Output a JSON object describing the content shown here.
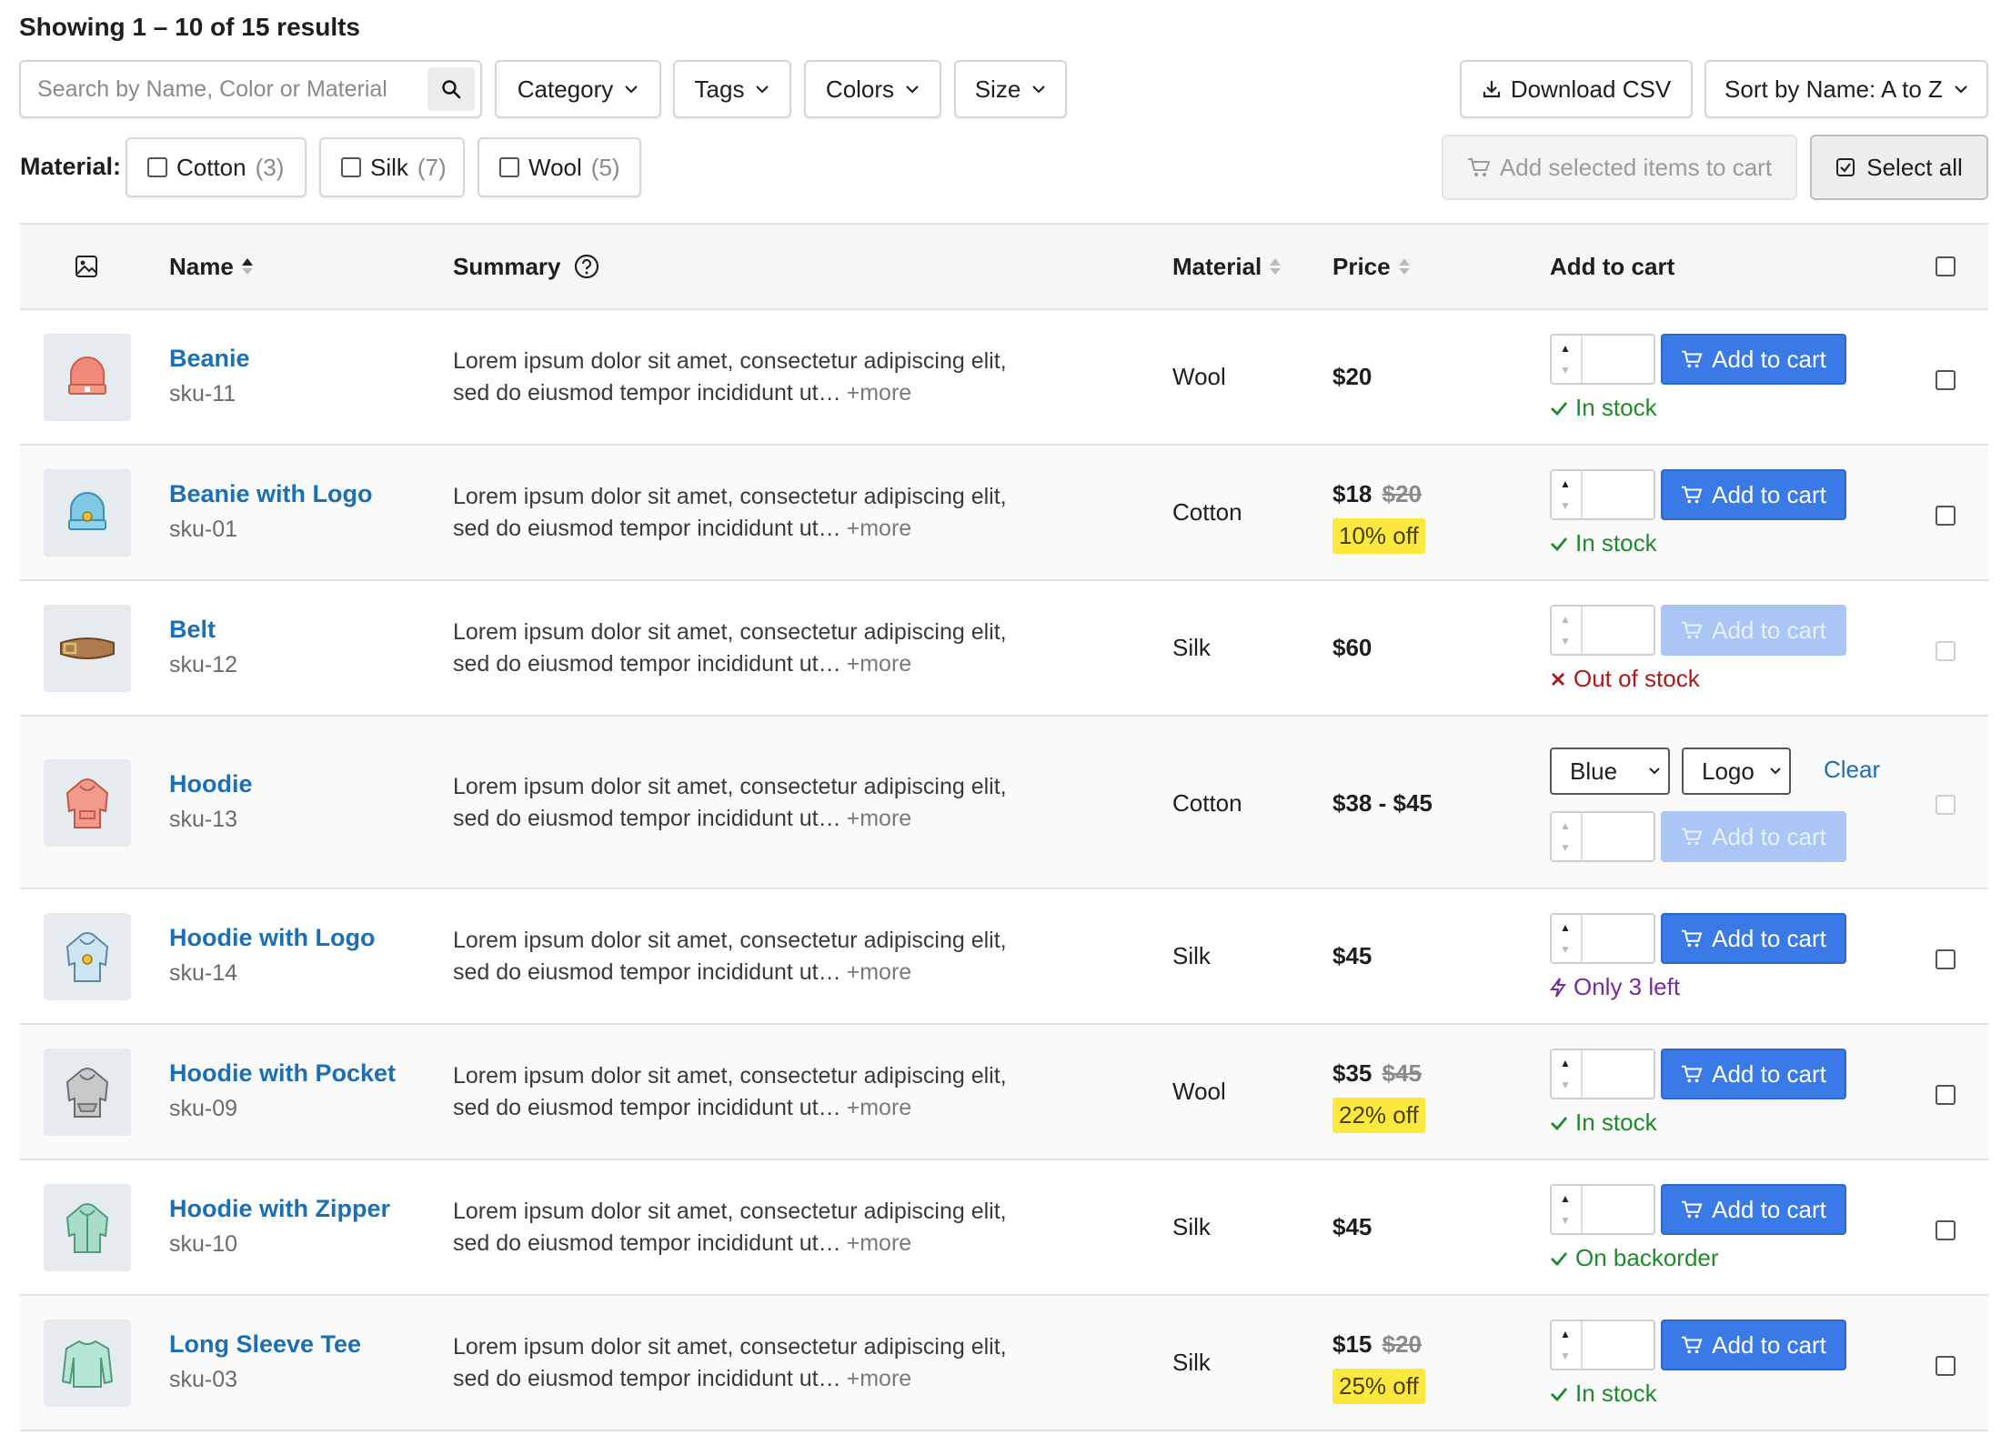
{
  "results_count": "Showing 1 – 10 of 15 results",
  "toolbar": {
    "search_placeholder": "Search by Name, Color or Material",
    "category": "Category",
    "tags": "Tags",
    "colors": "Colors",
    "size": "Size",
    "download": "Download CSV",
    "sort": "Sort by Name: A to Z"
  },
  "material_filter": {
    "label": "Material:",
    "options": [
      {
        "name": "Cotton",
        "count": "(3)"
      },
      {
        "name": "Silk",
        "count": "(7)"
      },
      {
        "name": "Wool",
        "count": "(5)"
      }
    ]
  },
  "actions": {
    "add_selected": "Add selected items to cart",
    "select_all": "Select all"
  },
  "columns": {
    "name": "Name",
    "summary": "Summary",
    "material": "Material",
    "price": "Price",
    "add_to_cart": "Add to cart"
  },
  "common": {
    "summary_text": "Lorem ipsum dolor sit amet, consectetur adipiscing elit, sed do eiusmod tempor incididunt ut…",
    "more": "+more",
    "add_to_cart": "Add to cart",
    "clear": "Clear"
  },
  "colors": {
    "link": "#1c6fb3",
    "primary_button": "#3a7ae6",
    "in_stock": "#1f8a2c",
    "out_of_stock": "#b01818",
    "low_stock": "#7a2aa0",
    "discount_highlight": "#fde83d"
  },
  "products": [
    {
      "name": "Beanie",
      "sku": "sku-11",
      "material": "Wool",
      "price": "$20",
      "status": "In stock",
      "icon": "beanie-icon"
    },
    {
      "name": "Beanie with Logo",
      "sku": "sku-01",
      "material": "Cotton",
      "price": "$18",
      "original_price": "$20",
      "discount": "10% off",
      "status": "In stock",
      "icon": "beanie-logo-icon"
    },
    {
      "name": "Belt",
      "sku": "sku-12",
      "material": "Silk",
      "price": "$60",
      "status": "Out of stock",
      "icon": "belt-icon"
    },
    {
      "name": "Hoodie",
      "sku": "sku-13",
      "material": "Cotton",
      "price": "$38 - $45",
      "variant_color": "Blue",
      "variant_logo": "Logo",
      "icon": "hoodie-icon"
    },
    {
      "name": "Hoodie with Logo",
      "sku": "sku-14",
      "material": "Silk",
      "price": "$45",
      "status": "Only 3 left",
      "icon": "hoodie-logo-icon"
    },
    {
      "name": "Hoodie with Pocket",
      "sku": "sku-09",
      "material": "Wool",
      "price": "$35",
      "original_price": "$45",
      "discount": "22% off",
      "status": "In stock",
      "icon": "hoodie-pocket-icon"
    },
    {
      "name": "Hoodie with Zipper",
      "sku": "sku-10",
      "material": "Silk",
      "price": "$45",
      "status": "On backorder",
      "icon": "hoodie-zipper-icon"
    },
    {
      "name": "Long Sleeve Tee",
      "sku": "sku-03",
      "material": "Silk",
      "price": "$15",
      "original_price": "$20",
      "discount": "25% off",
      "status": "In stock",
      "icon": "long-sleeve-tee-icon"
    }
  ]
}
